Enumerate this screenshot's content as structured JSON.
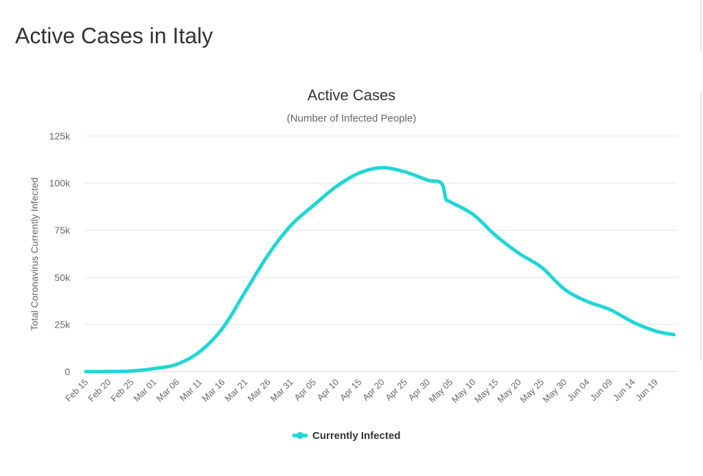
{
  "page": {
    "title": "Active Cases in Italy"
  },
  "colors": {
    "series": "#1fd6d6",
    "grid": "#e6e6e6",
    "text": "#666666"
  },
  "chart_data": {
    "type": "line",
    "title": "Active Cases",
    "subtitle": "(Number of Infected People)",
    "xlabel": "",
    "ylabel": "Total Coronavirus Currently Infected",
    "ylim": [
      0,
      125000
    ],
    "yticks": [
      0,
      25000,
      50000,
      75000,
      100000,
      125000
    ],
    "ytick_labels": [
      "0",
      "25k",
      "50k",
      "75k",
      "100k",
      "125k"
    ],
    "xtick_labels": [
      "Feb 15",
      "Feb 20",
      "Feb 25",
      "Mar 01",
      "Mar 06",
      "Mar 11",
      "Mar 16",
      "Mar 21",
      "Mar 26",
      "Mar 31",
      "Apr 05",
      "Apr 10",
      "Apr 15",
      "Apr 20",
      "Apr 25",
      "Apr 30",
      "May 05",
      "May 10",
      "May 15",
      "May 20",
      "May 25",
      "May 30",
      "Jun 04",
      "Jun 09",
      "Jun 14",
      "Jun 19"
    ],
    "x_days_total": 125,
    "grid": true,
    "legend_position": "bottom-center",
    "series": [
      {
        "name": "Currently Infected",
        "x_day": [
          0,
          5,
          10,
          15,
          20,
          25,
          30,
          35,
          40,
          45,
          50,
          55,
          60,
          65,
          70,
          75,
          78,
          79,
          80,
          85,
          90,
          95,
          100,
          105,
          110,
          115,
          120,
          125,
          129
        ],
        "values": [
          0,
          50,
          300,
          1600,
          3900,
          10600,
          23000,
          42500,
          62000,
          77600,
          88300,
          98300,
          105400,
          108200,
          106000,
          101600,
          100000,
          91500,
          90000,
          83300,
          72000,
          62800,
          55300,
          43700,
          37200,
          32900,
          26300,
          21500,
          19600
        ]
      }
    ]
  }
}
